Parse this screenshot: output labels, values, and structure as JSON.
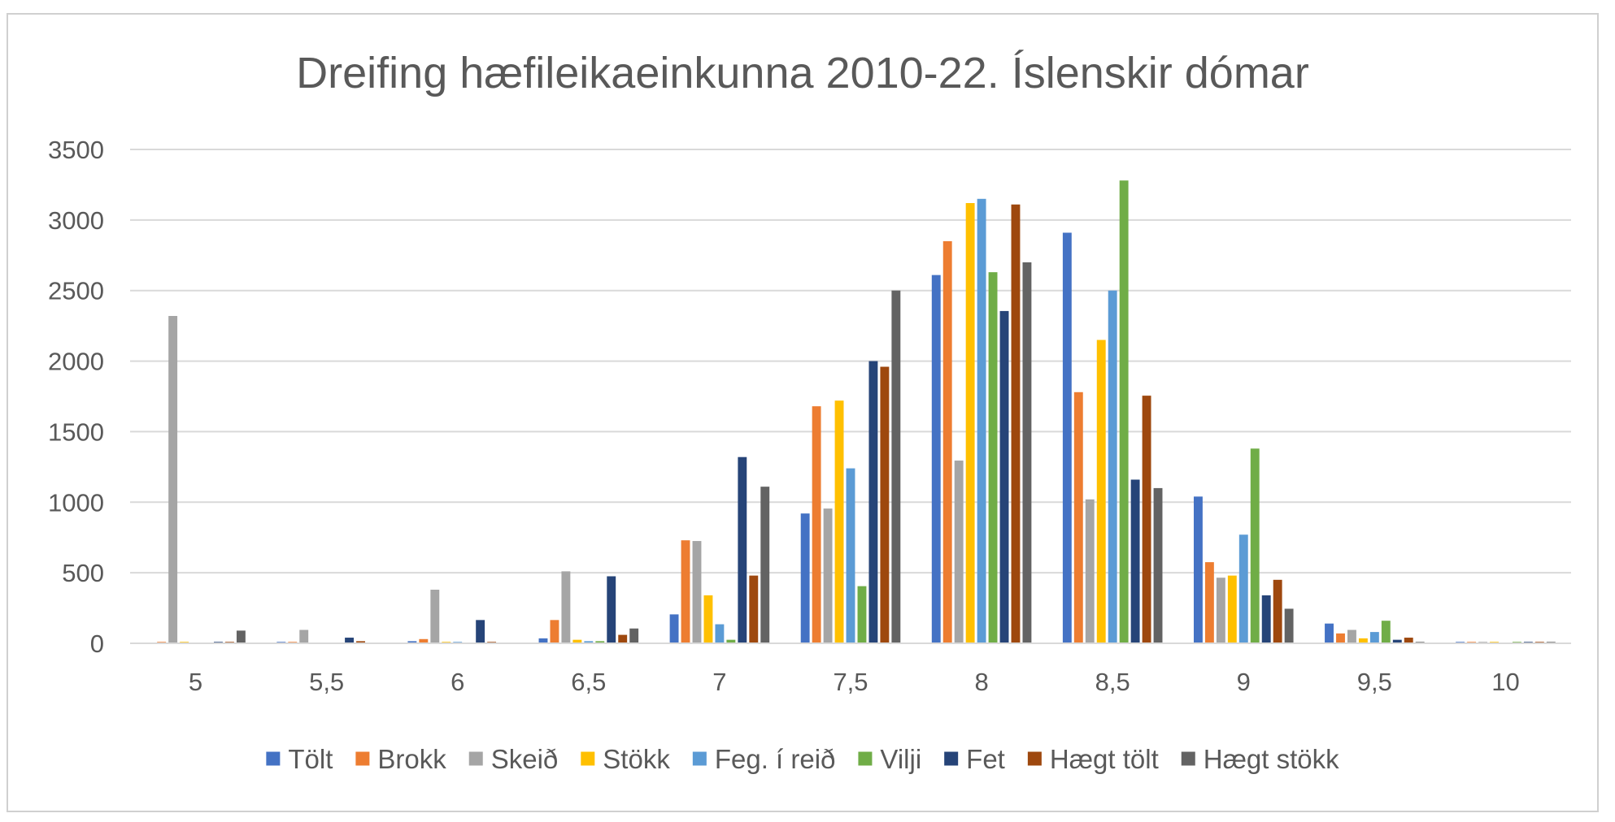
{
  "chart_data": {
    "type": "bar",
    "title": "Dreifing hæfileikaeinkunna 2010-22. Íslenskir dómar",
    "xlabel": "",
    "ylabel": "",
    "ylim": [
      0,
      3500
    ],
    "yticks": [
      0,
      500,
      1000,
      1500,
      2000,
      2500,
      3000,
      3500
    ],
    "grid": true,
    "legend_position": "bottom",
    "categories": [
      "5",
      "5,5",
      "6",
      "6,5",
      "7",
      "7,5",
      "8",
      "8,5",
      "9",
      "9,5",
      "10"
    ],
    "series": [
      {
        "name": "Tölt",
        "color": "#4472C4",
        "values": [
          0,
          10,
          15,
          35,
          205,
          920,
          2610,
          2910,
          1040,
          140,
          10
        ]
      },
      {
        "name": "Brokk",
        "color": "#ED7D31",
        "values": [
          10,
          10,
          30,
          165,
          730,
          1680,
          2850,
          1780,
          575,
          70,
          10
        ]
      },
      {
        "name": "Skeið",
        "color": "#A5A5A5",
        "values": [
          2320,
          95,
          380,
          510,
          725,
          955,
          1295,
          1020,
          465,
          95,
          10
        ]
      },
      {
        "name": "Stökk",
        "color": "#FFC000",
        "values": [
          10,
          0,
          10,
          25,
          340,
          1720,
          3120,
          2150,
          480,
          35,
          10
        ]
      },
      {
        "name": "Feg. í reið",
        "color": "#5B9BD5",
        "values": [
          0,
          0,
          10,
          15,
          135,
          1240,
          3150,
          2500,
          770,
          80,
          0
        ]
      },
      {
        "name": "Vilji",
        "color": "#70AD47",
        "values": [
          0,
          0,
          0,
          15,
          25,
          405,
          2630,
          3280,
          1380,
          160,
          10
        ]
      },
      {
        "name": "Fet",
        "color": "#264478",
        "values": [
          10,
          40,
          165,
          475,
          1320,
          2000,
          2355,
          1160,
          340,
          25,
          10
        ]
      },
      {
        "name": "Hægt tölt",
        "color": "#9E480E",
        "values": [
          10,
          15,
          10,
          60,
          480,
          1960,
          3110,
          1755,
          450,
          40,
          10
        ]
      },
      {
        "name": "Hægt stökk",
        "color": "#636363",
        "values": [
          90,
          0,
          0,
          105,
          1110,
          2500,
          2700,
          1100,
          245,
          10,
          10
        ]
      }
    ]
  }
}
